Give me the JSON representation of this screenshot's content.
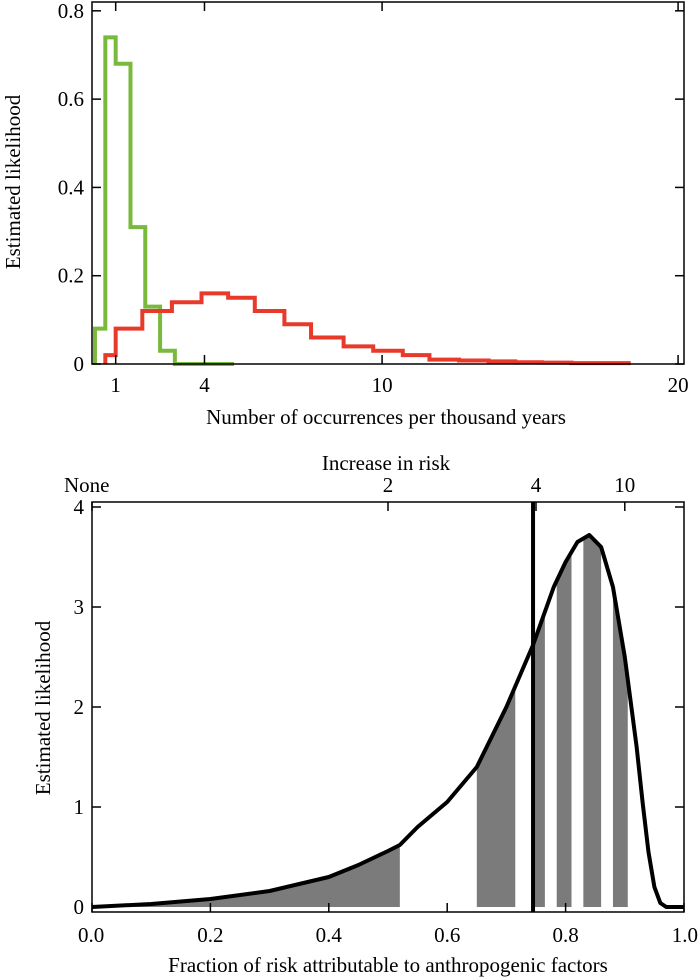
{
  "chart_data": [
    {
      "type": "step",
      "ylabel": "Estimated likelihood",
      "xlabel": "Number of occurrences per thousand years",
      "xlim": [
        0.2,
        20.2
      ],
      "ylim": [
        0,
        0.82
      ],
      "x_ticks": [
        1,
        4,
        10,
        20
      ],
      "y_ticks": [
        0,
        0.2,
        0.4,
        0.6,
        0.8
      ],
      "y_tick_labels": [
        "0",
        "0.2",
        "0.4",
        "0.6",
        "0.8"
      ],
      "series": [
        {
          "color": "#79b93c",
          "edges": [
            0.3,
            0.65,
            1.0,
            1.5,
            2.0,
            2.5,
            3.0,
            3.5,
            4.0,
            5.0
          ],
          "values": [
            0.08,
            0.74,
            0.68,
            0.31,
            0.13,
            0.03,
            0.0,
            0.0,
            0.0
          ]
        },
        {
          "color": "#e8392a",
          "edges": [
            0.65,
            1.0,
            1.9,
            2.9,
            3.9,
            4.8,
            5.7,
            6.7,
            7.6,
            8.7,
            9.7,
            10.7,
            11.6,
            12.6,
            13.6,
            14.5,
            15.4,
            16.4,
            17.4,
            18.4
          ],
          "values": [
            0.02,
            0.08,
            0.12,
            0.14,
            0.16,
            0.15,
            0.12,
            0.09,
            0.06,
            0.04,
            0.03,
            0.02,
            0.01,
            0.008,
            0.006,
            0.004,
            0.003,
            0.002,
            0.002
          ]
        }
      ]
    },
    {
      "type": "area",
      "ylabel": "Estimated likelihood",
      "xlabel": "Fraction of risk attributable to anthropogenic factors",
      "top_axis_label": "Increase in risk",
      "xlim": [
        0,
        1
      ],
      "ylim": [
        -0.05,
        4.05
      ],
      "x_ticks": [
        0.0,
        0.2,
        0.4,
        0.6,
        0.8,
        1.0
      ],
      "x_tick_labels": [
        "0.0",
        "0.2",
        "0.4",
        "0.6",
        "0.8",
        "1.0"
      ],
      "y_ticks": [
        0,
        1,
        2,
        3,
        4
      ],
      "y_tick_labels": [
        "0",
        "1",
        "2",
        "3",
        "4"
      ],
      "top_ticks": [
        {
          "x": 0.0,
          "label": "None"
        },
        {
          "x": 0.5,
          "label": "2"
        },
        {
          "x": 0.75,
          "label": "4"
        },
        {
          "x": 0.9,
          "label": "10"
        }
      ],
      "vertical_line_x": 0.745,
      "fill_color": "#7b7b7b",
      "curve_x": [
        0.0,
        0.1,
        0.2,
        0.3,
        0.4,
        0.45,
        0.5,
        0.52,
        0.55,
        0.6,
        0.65,
        0.7,
        0.745,
        0.78,
        0.8,
        0.82,
        0.84,
        0.86,
        0.88,
        0.9,
        0.92,
        0.93,
        0.94,
        0.95,
        0.96,
        0.97,
        0.98,
        1.0
      ],
      "curve_y": [
        0.0,
        0.03,
        0.08,
        0.16,
        0.3,
        0.42,
        0.56,
        0.62,
        0.8,
        1.05,
        1.4,
        2.0,
        2.62,
        3.2,
        3.45,
        3.65,
        3.72,
        3.6,
        3.2,
        2.5,
        1.6,
        1.05,
        0.55,
        0.2,
        0.04,
        0.0,
        0.0,
        0.0
      ],
      "shaded_bands": [
        [
          0.0,
          0.52
        ],
        [
          0.65,
          0.715
        ],
        [
          0.745,
          0.765
        ],
        [
          0.785,
          0.81
        ],
        [
          0.83,
          0.86
        ],
        [
          0.88,
          0.905
        ]
      ]
    }
  ]
}
